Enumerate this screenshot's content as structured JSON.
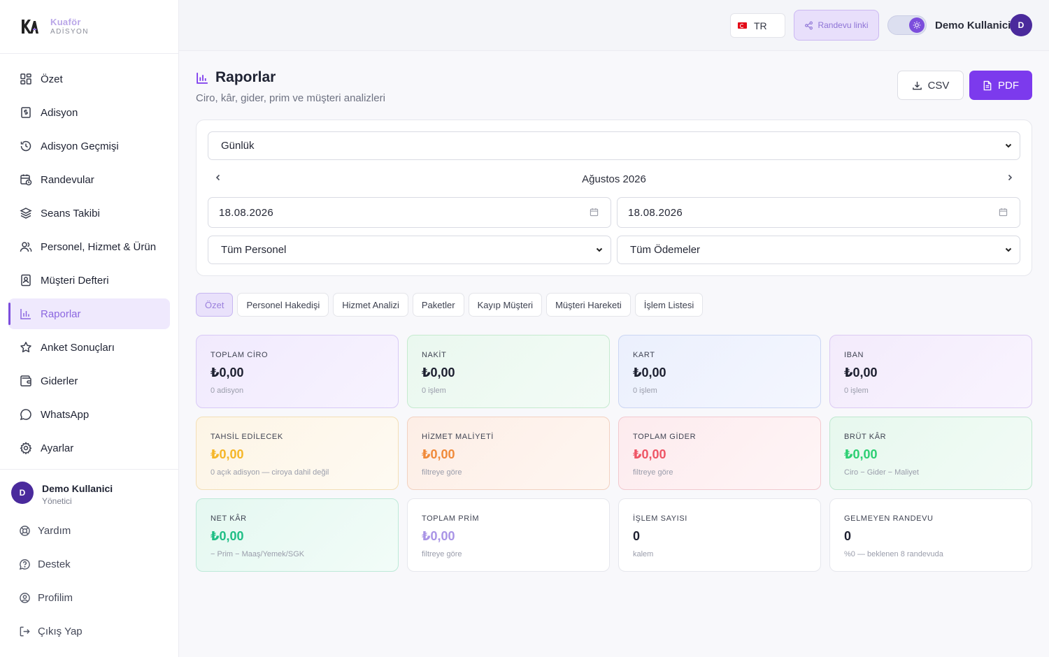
{
  "brand": {
    "name": "Kuaför",
    "sub": "ADİSYON"
  },
  "colors": {
    "accent": "#7c3aed",
    "active_bg": "#efe9fd",
    "avatar": "#4a2a9c"
  },
  "sidebar": {
    "items": [
      {
        "label": "Özet",
        "icon": "grid-icon"
      },
      {
        "label": "Adisyon",
        "icon": "receipt-icon"
      },
      {
        "label": "Adisyon Geçmişi",
        "icon": "history-icon"
      },
      {
        "label": "Randevular",
        "icon": "calendar-clock-icon"
      },
      {
        "label": "Seans Takibi",
        "icon": "layers-icon"
      },
      {
        "label": "Personel, Hizmet & Ürün",
        "icon": "users-icon"
      },
      {
        "label": "Müşteri Defteri",
        "icon": "contact-book-icon"
      },
      {
        "label": "Raporlar",
        "icon": "bar-chart-icon",
        "active": true
      },
      {
        "label": "Anket Sonuçları",
        "icon": "star-icon"
      },
      {
        "label": "Giderler",
        "icon": "wallet-icon"
      },
      {
        "label": "WhatsApp",
        "icon": "chat-bubble-icon"
      },
      {
        "label": "Ayarlar",
        "icon": "gear-icon"
      }
    ],
    "user": {
      "initial": "D",
      "name": "Demo Kullanici",
      "role": "Yönetici"
    },
    "bottom": [
      {
        "label": "Yardım",
        "icon": "lifebuoy-icon"
      },
      {
        "label": "Destek",
        "icon": "help-circle-icon"
      },
      {
        "label": "Profilim",
        "icon": "user-circle-icon"
      },
      {
        "label": "Çıkış Yap",
        "icon": "logout-icon"
      }
    ]
  },
  "topbar": {
    "lang": "TR",
    "randevu_link": "Randevu linki",
    "user_name": "Demo Kullanici",
    "user_initial": "D"
  },
  "page": {
    "title": "Raporlar",
    "subtitle": "Ciro, kâr, gider, prim ve müşteri analizleri",
    "csv": "CSV",
    "pdf": "PDF"
  },
  "filters": {
    "period": "Günlük",
    "month": "Ağustos 2026",
    "start_date": "18.08.2026",
    "end_date": "18.08.2026",
    "staff": "Tüm Personel",
    "payments": "Tüm Ödemeler"
  },
  "tabs": [
    "Özet",
    "Personel Hakedişi",
    "Hizmet Analizi",
    "Paketler",
    "Kayıp Müşteri",
    "Müşteri Hareketi",
    "İşlem Listesi"
  ],
  "cards": [
    {
      "label": "TOPLAM CİRO",
      "value": "₺0,00",
      "note": "0 adisyon"
    },
    {
      "label": "NAKİT",
      "value": "₺0,00",
      "note": "0 işlem"
    },
    {
      "label": "KART",
      "value": "₺0,00",
      "note": "0 işlem"
    },
    {
      "label": "IBAN",
      "value": "₺0,00",
      "note": "0 işlem"
    },
    {
      "label": "TAHSİL EDİLECEK",
      "value": "₺0,00",
      "note": "0 açık adisyon — ciroya dahil değil"
    },
    {
      "label": "HİZMET MALİYETİ",
      "value": "₺0,00",
      "note": "filtreye göre"
    },
    {
      "label": "TOPLAM GİDER",
      "value": "₺0,00",
      "note": "filtreye göre"
    },
    {
      "label": "BRÜT KÂR",
      "value": "₺0,00",
      "note": "Ciro − Gider − Maliyet"
    },
    {
      "label": "NET KÂR",
      "value": "₺0,00",
      "note": "− Prim − Maaş/Yemek/SGK"
    },
    {
      "label": "TOPLAM PRİM",
      "value": "₺0,00",
      "note": "filtreye göre"
    },
    {
      "label": "İŞLEM SAYISI",
      "value": "0",
      "note": "kalem"
    },
    {
      "label": "GELMEYEN RANDEVU",
      "value": "0",
      "note": "%0 — beklenen 8 randevuda"
    }
  ]
}
